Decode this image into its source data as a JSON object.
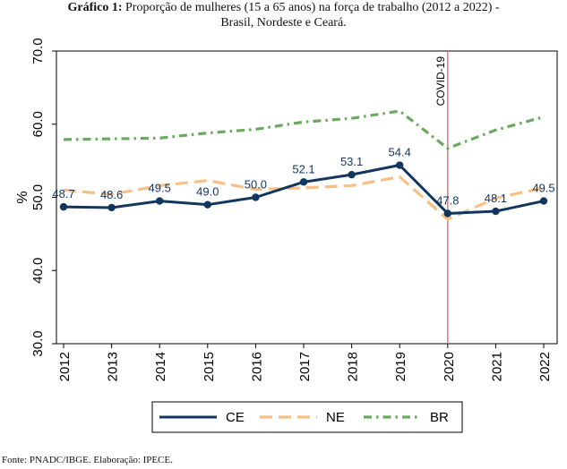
{
  "header": {
    "title_lead": "Gráfico 1:",
    "title_rest": " Proporção de mulheres (15 a 65 anos) na força de trabalho (2012 a 2022) -",
    "title_line2": "Brasil, Nordeste e Ceará."
  },
  "footer": {
    "source": "Fonte: PNADC/IBGE. Elaboração: IPECE."
  },
  "chart_data": {
    "type": "line",
    "title": "Gráfico 1: Proporção de mulheres (15 a 65 anos) na força de trabalho (2012 a 2022) - Brasil, Nordeste e Ceará.",
    "xlabel": "",
    "ylabel": "%",
    "x": [
      "2012",
      "2013",
      "2014",
      "2015",
      "2016",
      "2017",
      "2018",
      "2019",
      "2020",
      "2021",
      "2022"
    ],
    "ylim": [
      30,
      70
    ],
    "yticks": [
      "30.0",
      "40.0",
      "50.0",
      "60.0",
      "70.0"
    ],
    "series": [
      {
        "name": "CE",
        "color": "#12365e",
        "style": "solid-markers",
        "values": [
          48.7,
          48.6,
          49.5,
          49.0,
          50.0,
          52.1,
          53.1,
          54.4,
          47.8,
          48.1,
          49.5
        ],
        "labels": [
          "48.7",
          "48.6",
          "49.5",
          "49.0",
          "50.0",
          "52.1",
          "53.1",
          "54.4",
          "47.8",
          "48.1",
          "49.5"
        ]
      },
      {
        "name": "NE",
        "color": "#f8bf86",
        "style": "dashed",
        "values": [
          51.0,
          50.4,
          51.6,
          52.3,
          51.1,
          51.3,
          51.6,
          52.8,
          47.0,
          49.9,
          51.3
        ]
      },
      {
        "name": "BR",
        "color": "#6aaa5e",
        "style": "dash-dot",
        "values": [
          57.9,
          58.0,
          58.1,
          58.8,
          59.3,
          60.3,
          60.8,
          61.8,
          56.7,
          59.2,
          61.0
        ]
      }
    ],
    "annotations": [
      {
        "x": "2020",
        "text": "COVID-19",
        "type": "vertical-line",
        "color": "#e0808a"
      }
    ],
    "grid": false,
    "legend": "bottom"
  }
}
